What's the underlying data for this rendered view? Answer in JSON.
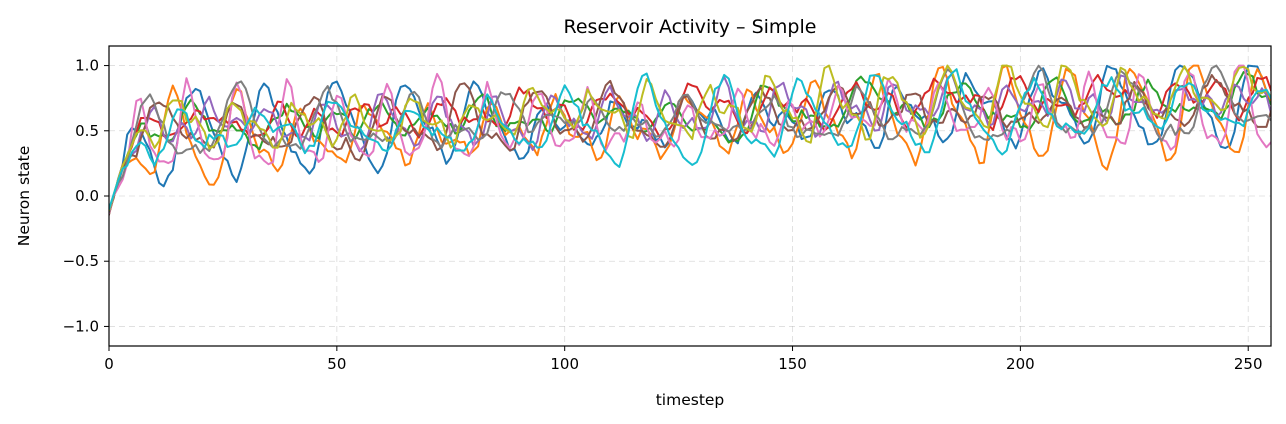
{
  "chart_data": {
    "type": "line",
    "title": "Reservoir Activity – Simple",
    "xlabel": "timestep",
    "ylabel": "Neuron state",
    "xlim": [
      0,
      255
    ],
    "ylim": [
      -1.15,
      1.15
    ],
    "xticks": [
      0,
      50,
      100,
      150,
      200,
      250
    ],
    "xtick_labels": [
      "0",
      "50",
      "100",
      "150",
      "200",
      "250"
    ],
    "yticks": [
      -1.0,
      -0.5,
      0.0,
      0.5,
      1.0
    ],
    "ytick_labels": [
      "−1.0",
      "−0.5",
      "0.0",
      "0.5",
      "1.0"
    ],
    "grid": true,
    "legend": "none",
    "series": [
      {
        "color": "#1f77b4",
        "params": {
          "base": 0.45,
          "amp": 0.27,
          "period": 15.5,
          "phase": 0.0,
          "drift": 0.26,
          "seed": 1
        }
      },
      {
        "color": "#ff7f0e",
        "params": {
          "base": 0.42,
          "amp": 0.3,
          "period": 14.0,
          "phase": 1.1,
          "drift": 0.24,
          "seed": 2
        }
      },
      {
        "color": "#2ca02c",
        "params": {
          "base": 0.52,
          "amp": 0.12,
          "period": 21.0,
          "phase": 2.0,
          "drift": 0.22,
          "seed": 3
        }
      },
      {
        "color": "#d62728",
        "params": {
          "base": 0.55,
          "amp": 0.1,
          "period": 18.0,
          "phase": 0.6,
          "drift": 0.24,
          "seed": 4
        }
      },
      {
        "color": "#9467bd",
        "params": {
          "base": 0.5,
          "amp": 0.14,
          "period": 12.5,
          "phase": 2.7,
          "drift": 0.25,
          "seed": 5
        }
      },
      {
        "color": "#8c564b",
        "params": {
          "base": 0.5,
          "amp": 0.18,
          "period": 16.5,
          "phase": 3.4,
          "drift": 0.2,
          "seed": 6
        }
      },
      {
        "color": "#e377c2",
        "params": {
          "base": 0.48,
          "amp": 0.25,
          "period": 11.0,
          "phase": 4.2,
          "drift": 0.18,
          "seed": 7
        }
      },
      {
        "color": "#7f7f7f",
        "params": {
          "base": 0.5,
          "amp": 0.2,
          "period": 19.5,
          "phase": 5.0,
          "drift": 0.16,
          "seed": 8
        }
      },
      {
        "color": "#bcbd22",
        "params": {
          "base": 0.52,
          "amp": 0.2,
          "period": 13.0,
          "phase": 0.3,
          "drift": 0.28,
          "seed": 9
        }
      },
      {
        "color": "#17becf",
        "params": {
          "base": 0.47,
          "amp": 0.24,
          "period": 17.0,
          "phase": 1.8,
          "drift": 0.2,
          "seed": 10
        }
      }
    ]
  }
}
